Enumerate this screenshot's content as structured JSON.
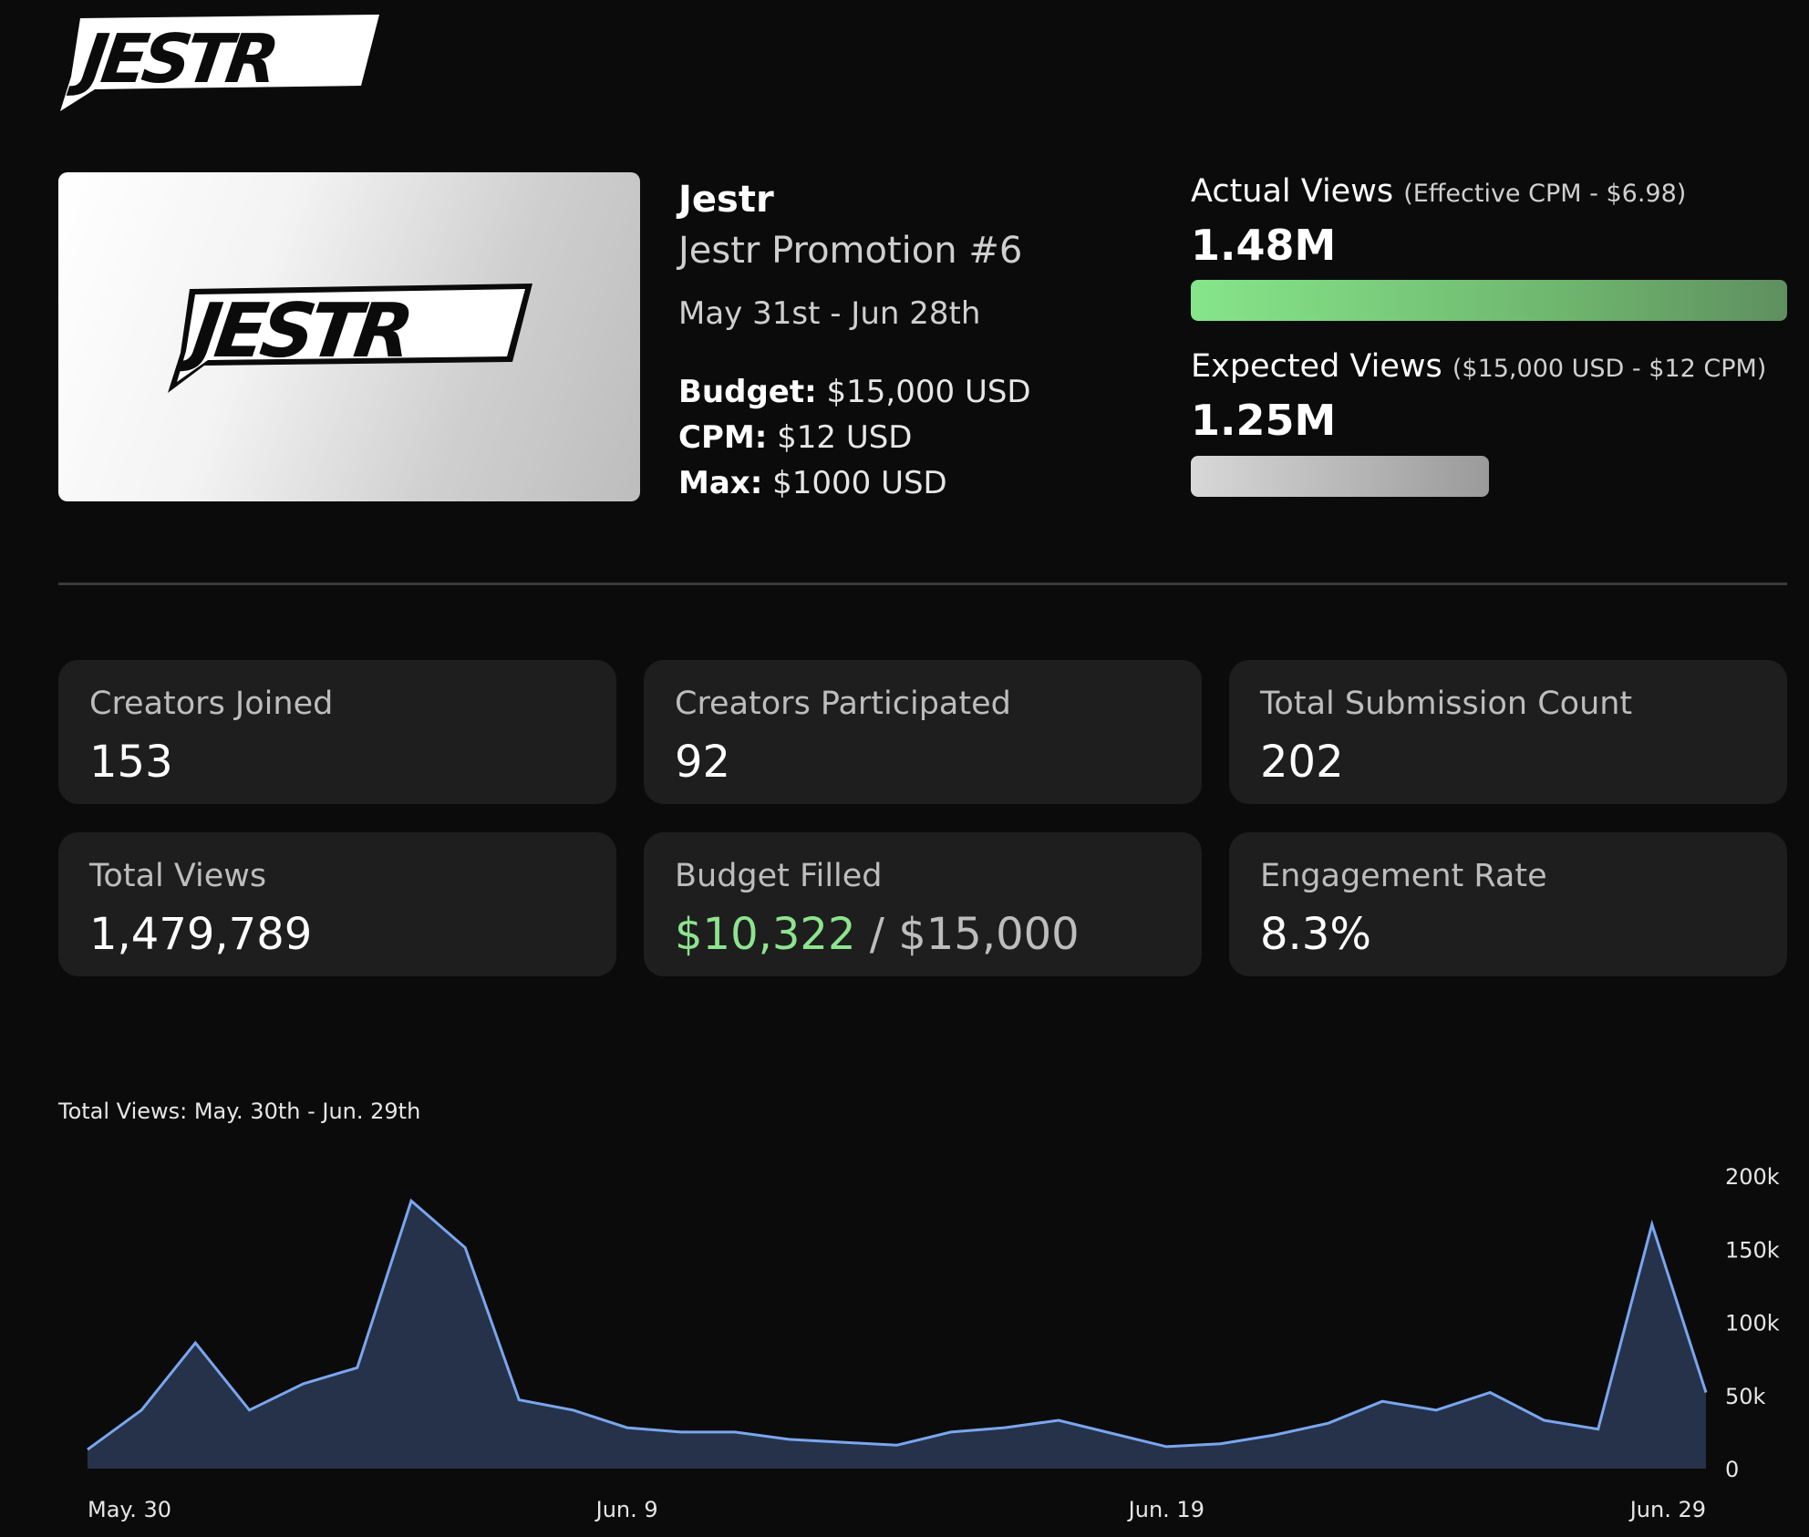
{
  "header": {
    "logo_text": "JESTR"
  },
  "campaign": {
    "thumbnail_logo_text": "JESTR",
    "brand": "Jestr",
    "promotion": "Jestr Promotion #6",
    "date_range": "May 31st - Jun 28th",
    "budget_label": "Budget:",
    "budget_value": "$15,000 USD",
    "cpm_label": "CPM:",
    "cpm_value": "$12 USD",
    "max_label": "Max:",
    "max_value": "$1000 USD"
  },
  "views": {
    "actual_title": "Actual Views",
    "actual_sub": "(Effective CPM - $6.98)",
    "actual_value": "1.48M",
    "actual_fraction": 1.0,
    "expected_title": "Expected Views",
    "expected_sub": "($15,000 USD - $12 CPM)",
    "expected_value": "1.25M",
    "expected_fraction": 0.5
  },
  "stats": {
    "creators_joined_label": "Creators Joined",
    "creators_joined_value": "153",
    "creators_participated_label": "Creators Participated",
    "creators_participated_value": "92",
    "submission_count_label": "Total Submission Count",
    "submission_count_value": "202",
    "total_views_label": "Total Views",
    "total_views_value": "1,479,789",
    "budget_filled_label": "Budget Filled",
    "budget_filled_value": "$10,322",
    "budget_filled_sep": "/",
    "budget_filled_total": "$15,000",
    "engagement_label": "Engagement Rate",
    "engagement_value": "8.3%"
  },
  "colors": {
    "accent_green": "#8de48e",
    "line": "#7aa6ee",
    "area": "#25324a"
  },
  "chart_data": {
    "type": "area",
    "title": "Total Views: May. 30th - Jun. 29th",
    "x": [
      "May. 30",
      "May. 31",
      "Jun. 1",
      "Jun. 2",
      "Jun. 3",
      "Jun. 4",
      "Jun. 5",
      "Jun. 6",
      "Jun. 7",
      "Jun. 8",
      "Jun. 9",
      "Jun. 10",
      "Jun. 11",
      "Jun. 12",
      "Jun. 13",
      "Jun. 14",
      "Jun. 15",
      "Jun. 16",
      "Jun. 17",
      "Jun. 18",
      "Jun. 19",
      "Jun. 20",
      "Jun. 21",
      "Jun. 22",
      "Jun. 23",
      "Jun. 24",
      "Jun. 25",
      "Jun. 26",
      "Jun. 27",
      "Jun. 28",
      "Jun. 29"
    ],
    "x_tick_labels": [
      "May. 30",
      "Jun. 9",
      "Jun. 19",
      "Jun. 29"
    ],
    "x_tick_indices": [
      0,
      10,
      20,
      30
    ],
    "values": [
      13000,
      40000,
      86000,
      40000,
      58000,
      69000,
      183000,
      151000,
      47000,
      40000,
      28000,
      25000,
      25000,
      20000,
      18000,
      16000,
      25000,
      28000,
      33000,
      24000,
      15000,
      17000,
      23000,
      31000,
      46000,
      40000,
      52000,
      33000,
      27000,
      167000,
      52000
    ],
    "ylim": [
      0,
      200000
    ],
    "y_ticks": [
      0,
      50000,
      100000,
      150000,
      200000
    ],
    "y_tick_labels": [
      "0",
      "50k",
      "100k",
      "150k",
      "200k"
    ],
    "grid": false
  }
}
